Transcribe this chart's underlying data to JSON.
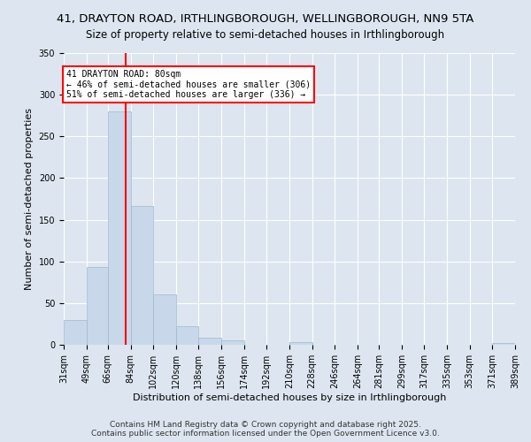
{
  "title": "41, DRAYTON ROAD, IRTHLINGBOROUGH, WELLINGBOROUGH, NN9 5TA",
  "subtitle": "Size of property relative to semi-detached houses in Irthlingborough",
  "xlabel": "Distribution of semi-detached houses by size in Irthlingborough",
  "ylabel": "Number of semi-detached properties",
  "bins": [
    31,
    49,
    66,
    84,
    102,
    120,
    138,
    156,
    174,
    192,
    210,
    228,
    246,
    264,
    281,
    299,
    317,
    335,
    353,
    371,
    389
  ],
  "bin_labels": [
    "31sqm",
    "49sqm",
    "66sqm",
    "84sqm",
    "102sqm",
    "120sqm",
    "138sqm",
    "156sqm",
    "174sqm",
    "192sqm",
    "210sqm",
    "228sqm",
    "246sqm",
    "264sqm",
    "281sqm",
    "299sqm",
    "317sqm",
    "335sqm",
    "353sqm",
    "371sqm",
    "389sqm"
  ],
  "counts": [
    30,
    93,
    280,
    167,
    60,
    22,
    9,
    5,
    0,
    0,
    3,
    0,
    0,
    0,
    0,
    0,
    0,
    0,
    0,
    2
  ],
  "bar_color": "#c8d8ea",
  "bar_edge_color": "#a0b8cc",
  "vline_x": 80,
  "vline_color": "red",
  "annotation_line1": "41 DRAYTON ROAD: 80sqm",
  "annotation_line2": "← 46% of semi-detached houses are smaller (306)",
  "annotation_line3": "51% of semi-detached houses are larger (336) →",
  "annotation_box_color": "white",
  "annotation_box_edge_color": "red",
  "ylim": [
    0,
    350
  ],
  "yticks": [
    0,
    50,
    100,
    150,
    200,
    250,
    300,
    350
  ],
  "background_color": "#dde6f0",
  "plot_bg_color": "#dde6f0",
  "footer_line1": "Contains HM Land Registry data © Crown copyright and database right 2025.",
  "footer_line2": "Contains public sector information licensed under the Open Government Licence v3.0.",
  "title_fontsize": 9.5,
  "subtitle_fontsize": 8.5,
  "xlabel_fontsize": 8,
  "ylabel_fontsize": 8,
  "tick_fontsize": 7,
  "annotation_fontsize": 7,
  "footer_fontsize": 6.5
}
